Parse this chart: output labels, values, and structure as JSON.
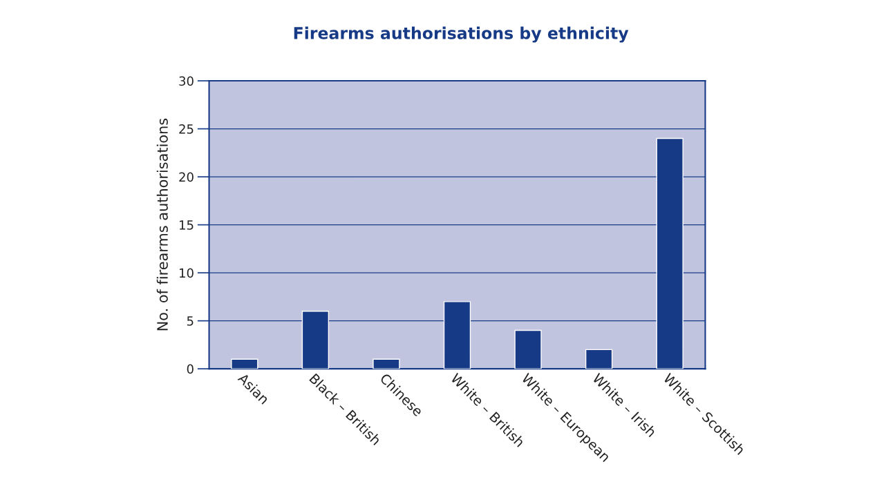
{
  "chart_data": {
    "type": "bar",
    "title": "Firearms authorisations by ethnicity",
    "ylabel": "No. of firearms authorisations",
    "categories": [
      "Asian",
      "Black – British",
      "Chinese",
      "White – British",
      "White – European",
      "White – Irish",
      "White – Scottish"
    ],
    "values": [
      1,
      6,
      1,
      7,
      4,
      2,
      24
    ],
    "color": "#173a87",
    "ylim": [
      0,
      30
    ],
    "yticks": [
      0,
      5,
      10,
      15,
      20,
      25,
      30
    ],
    "grid": "y"
  }
}
